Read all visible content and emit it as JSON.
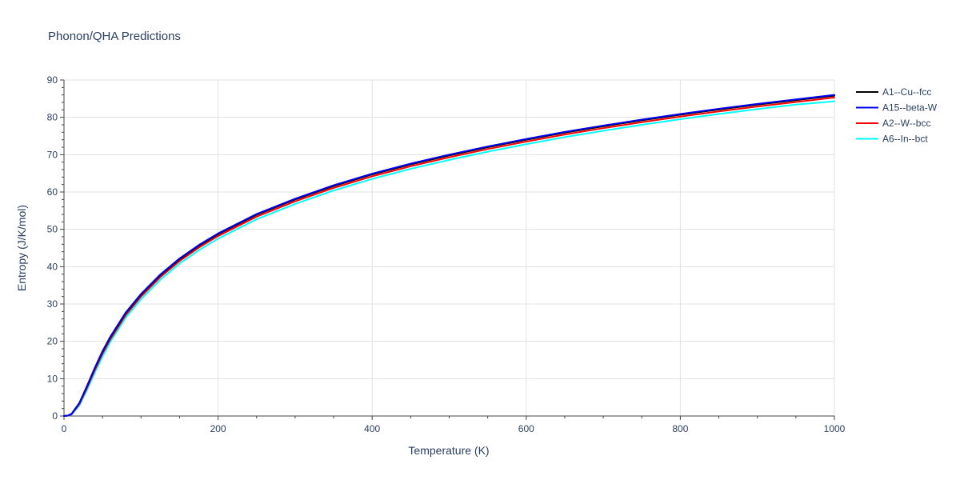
{
  "chart_data": {
    "type": "line",
    "title": "Phonon/QHA Predictions",
    "xlabel": "Temperature (K)",
    "ylabel": "Entropy (J/K/mol)",
    "xlim": [
      0,
      1000
    ],
    "ylim": [
      0,
      90
    ],
    "xticks": [
      0,
      200,
      400,
      600,
      800,
      1000
    ],
    "yticks": [
      0,
      10,
      20,
      30,
      40,
      50,
      60,
      70,
      80,
      90
    ],
    "grid": true,
    "legend_position": "top-right",
    "x": [
      0,
      5,
      10,
      20,
      30,
      40,
      50,
      60,
      80,
      100,
      125,
      150,
      175,
      200,
      250,
      300,
      350,
      400,
      450,
      500,
      550,
      600,
      650,
      700,
      750,
      800,
      850,
      900,
      950,
      1000
    ],
    "series": [
      {
        "name": "A1--Cu--fcc",
        "color": "#000000",
        "values": [
          0,
          0.1,
          0.6,
          3.5,
          8.0,
          12.8,
          17.2,
          21.0,
          27.5,
          32.5,
          37.7,
          42.0,
          45.6,
          48.7,
          53.9,
          58.0,
          61.6,
          64.7,
          67.4,
          69.8,
          72.0,
          74.0,
          75.9,
          77.6,
          79.2,
          80.7,
          82.1,
          83.4,
          84.6,
          85.8
        ]
      },
      {
        "name": "A15--beta-W",
        "color": "#0000ee",
        "values": [
          0,
          0.1,
          0.6,
          3.5,
          8.1,
          12.9,
          17.4,
          21.2,
          27.7,
          32.7,
          37.9,
          42.2,
          45.8,
          48.9,
          54.1,
          58.2,
          61.8,
          64.9,
          67.6,
          70.0,
          72.2,
          74.2,
          76.1,
          77.8,
          79.4,
          80.9,
          82.3,
          83.6,
          84.8,
          86.0
        ]
      },
      {
        "name": "A2--W--bcc",
        "color": "#ff0000",
        "values": [
          0,
          0.1,
          0.5,
          3.2,
          7.6,
          12.3,
          16.7,
          20.5,
          27.0,
          32.0,
          37.2,
          41.5,
          45.1,
          48.2,
          53.4,
          57.5,
          61.1,
          64.2,
          66.9,
          69.3,
          71.5,
          73.5,
          75.4,
          77.1,
          78.7,
          80.2,
          81.6,
          82.9,
          84.1,
          85.3
        ]
      },
      {
        "name": "A6--In--bct",
        "color": "#00ffff",
        "values": [
          0,
          0.1,
          0.4,
          2.8,
          7.0,
          11.6,
          15.9,
          19.8,
          26.3,
          31.3,
          36.5,
          40.8,
          44.4,
          47.5,
          52.7,
          56.8,
          60.4,
          63.5,
          66.2,
          68.6,
          70.8,
          72.8,
          74.7,
          76.4,
          78.0,
          79.5,
          80.9,
          82.2,
          83.4,
          84.3
        ]
      }
    ]
  }
}
